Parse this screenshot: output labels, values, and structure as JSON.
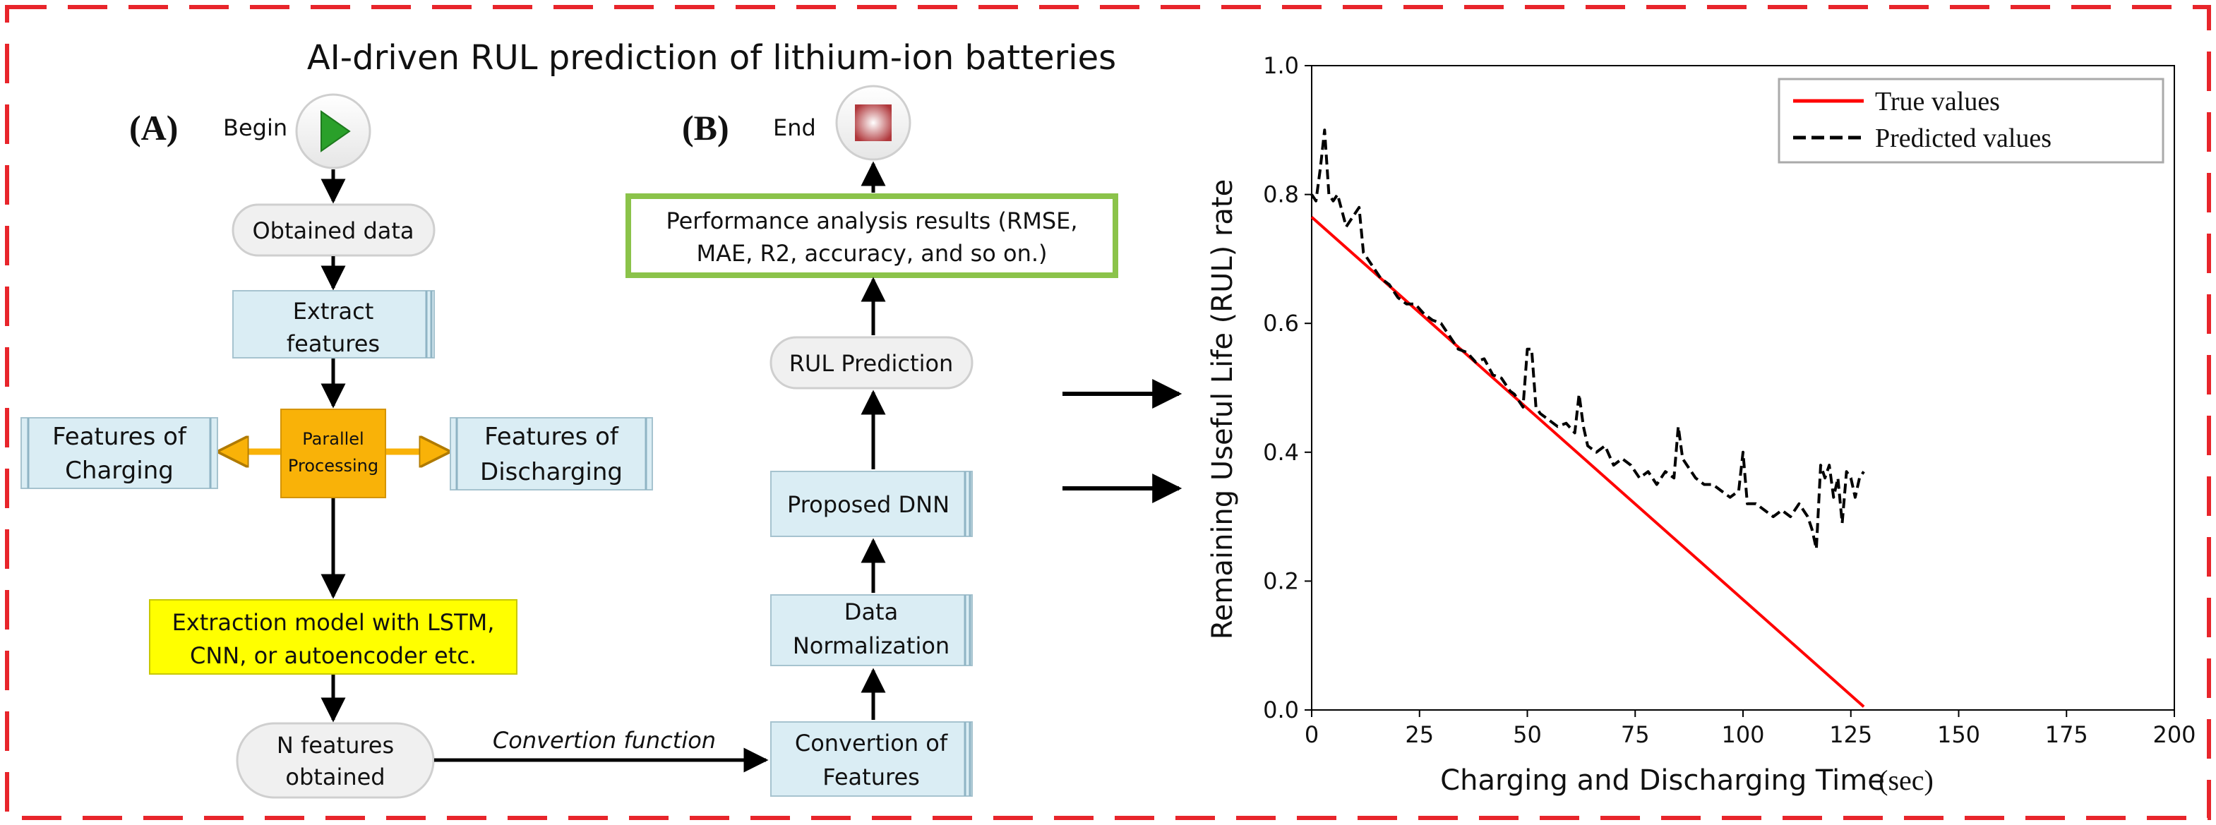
{
  "figure": {
    "main_title": "AI-driven RUL prediction of lithium-ion batteries",
    "frame_color": "#e8252b"
  },
  "panel_a": {
    "label": "(A)",
    "begin_label": "Begin",
    "nodes": {
      "obtained_data": "Obtained data",
      "extract_features_1": "Extract",
      "extract_features_2": "features",
      "parallel_1": "Parallel",
      "parallel_2": "Processing",
      "charging_1": "Features of",
      "charging_2": "Charging",
      "discharging_1": "Features of",
      "discharging_2": "Discharging",
      "extraction_model_1": "Extraction model with LSTM,",
      "extraction_model_2": "CNN, or autoencoder etc.",
      "n_features_1": "N features",
      "n_features_2": "obtained"
    },
    "conversion_edge_label": "Convertion function"
  },
  "panel_b": {
    "label": "(B)",
    "end_label": "End",
    "nodes": {
      "performance_1": "Performance analysis results (RMSE,",
      "performance_2": "MAE, R2, accuracy, and so on.)",
      "rul_prediction": "RUL Prediction",
      "proposed_dnn": "Proposed DNN",
      "normalization_1": "Data",
      "normalization_2": "Normalization",
      "conversion_1": "Convertion of",
      "conversion_2": "Features"
    }
  },
  "colors": {
    "light_blue": "#daedf4",
    "blue_edge": "#8fb4c4",
    "orange": "#f9b208",
    "yellow": "#ffff00",
    "green_border": "#8bc34a",
    "terminal_fill": "#f0f0f0",
    "true_line": "#ff0000",
    "pred_line": "#000000"
  },
  "chart_data": {
    "type": "line",
    "title": "",
    "xlabel": "Charging and Discharging Time",
    "xlabel_unit": "(sec)",
    "ylabel": "Remaining Useful Life (RUL) rate",
    "xlim": [
      0,
      200
    ],
    "ylim": [
      0,
      1.0
    ],
    "xticks": [
      "0",
      "25",
      "50",
      "75",
      "100",
      "125",
      "150",
      "175",
      "200"
    ],
    "yticks": [
      "0.0",
      "0.2",
      "0.4",
      "0.6",
      "0.8",
      "1.0"
    ],
    "legend_position": "top-right",
    "series": [
      {
        "name": "True values",
        "style": "solid",
        "color": "#ff0000",
        "x": [
          0,
          128
        ],
        "y": [
          0.765,
          0.005
        ]
      },
      {
        "name": "Predicted values",
        "style": "dashed",
        "color": "#000000",
        "x": [
          0,
          1,
          2,
          3,
          4,
          5,
          6,
          8,
          10,
          11,
          12,
          14,
          16,
          18,
          20,
          22,
          24,
          26,
          28,
          30,
          32,
          34,
          36,
          38,
          40,
          42,
          44,
          46,
          47,
          48,
          49,
          50,
          51,
          52,
          53,
          55,
          57,
          59,
          61,
          62,
          63,
          64,
          66,
          68,
          70,
          72,
          74,
          76,
          78,
          80,
          82,
          84,
          85,
          86,
          87,
          89,
          91,
          93,
          95,
          97,
          99,
          100,
          101,
          103,
          105,
          107,
          109,
          111,
          113,
          115,
          116,
          117,
          118,
          119,
          120,
          121,
          122,
          123,
          124,
          125,
          126,
          127,
          128
        ],
        "y": [
          0.8,
          0.79,
          0.84,
          0.9,
          0.8,
          0.79,
          0.8,
          0.75,
          0.77,
          0.78,
          0.71,
          0.69,
          0.67,
          0.66,
          0.64,
          0.63,
          0.63,
          0.615,
          0.605,
          0.6,
          0.58,
          0.56,
          0.555,
          0.54,
          0.545,
          0.52,
          0.515,
          0.495,
          0.49,
          0.48,
          0.47,
          0.56,
          0.56,
          0.47,
          0.46,
          0.45,
          0.44,
          0.445,
          0.43,
          0.49,
          0.44,
          0.41,
          0.4,
          0.41,
          0.38,
          0.39,
          0.38,
          0.36,
          0.37,
          0.35,
          0.37,
          0.36,
          0.44,
          0.39,
          0.38,
          0.36,
          0.35,
          0.35,
          0.34,
          0.33,
          0.34,
          0.4,
          0.32,
          0.32,
          0.31,
          0.3,
          0.31,
          0.3,
          0.32,
          0.3,
          0.28,
          0.25,
          0.38,
          0.36,
          0.38,
          0.33,
          0.36,
          0.29,
          0.37,
          0.36,
          0.33,
          0.36,
          0.37
        ]
      }
    ]
  }
}
